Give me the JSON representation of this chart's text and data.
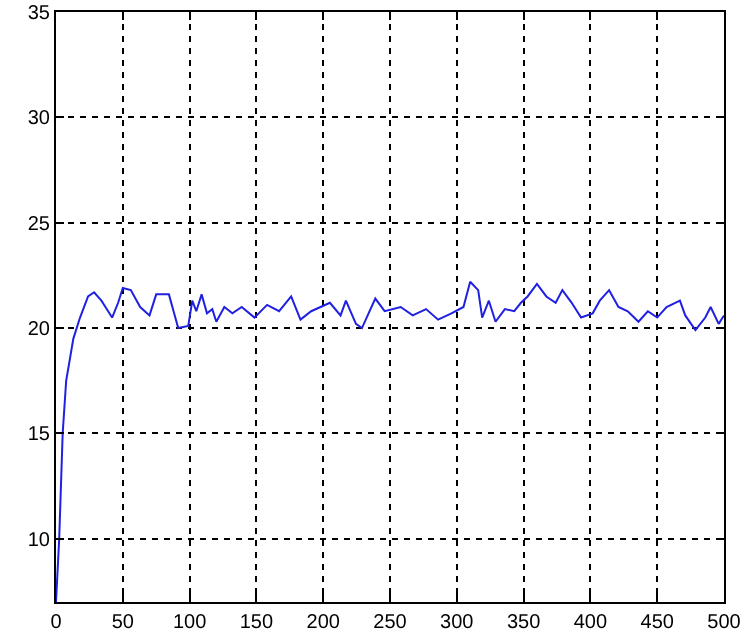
{
  "chart_data": {
    "type": "line",
    "x": [
      0,
      2.4,
      5,
      7.6,
      13,
      18,
      24,
      28.5,
      34,
      37,
      42,
      46.5,
      50,
      56,
      63,
      70,
      75,
      84.5,
      88,
      91.5,
      99,
      102,
      105,
      109,
      113,
      117,
      120,
      126,
      132,
      139,
      148.6,
      158,
      167,
      176,
      183,
      191,
      205,
      213,
      217,
      224.5,
      229,
      239,
      246,
      258,
      267,
      277,
      286,
      296,
      305,
      310,
      316,
      319,
      324,
      329,
      336,
      343,
      348,
      353,
      360,
      367,
      374,
      379,
      386,
      393,
      401.7,
      407,
      414,
      421,
      428,
      436,
      443,
      450,
      457,
      467,
      471,
      478.6,
      486,
      490,
      496,
      500
    ],
    "series": [
      {
        "color": "#2020e0",
        "values": [
          7,
          10,
          15,
          17.5,
          19.5,
          20.5,
          21.5,
          21.7,
          21.3,
          21,
          20.5,
          21.2,
          21.9,
          21.8,
          21,
          20.6,
          21.6,
          21.6,
          20.8,
          20,
          20.1,
          21.3,
          20.8,
          21.6,
          20.7,
          20.9,
          20.3,
          21,
          20.7,
          21,
          20.5,
          21.1,
          20.8,
          21.5,
          20.4,
          20.8,
          21.2,
          20.6,
          21.3,
          20.2,
          20,
          21.4,
          20.8,
          21,
          20.6,
          20.9,
          20.4,
          20.7,
          21,
          22.2,
          21.8,
          20.5,
          21.3,
          20.3,
          20.9,
          20.8,
          21.2,
          21.5,
          22.1,
          21.5,
          21.2,
          21.8,
          21.2,
          20.5,
          20.7,
          21.3,
          21.8,
          21,
          20.8,
          20.3,
          20.8,
          20.5,
          21,
          21.3,
          20.6,
          19.9,
          20.5,
          21,
          20.2,
          20.6
        ]
      }
    ],
    "xlim": [
      0,
      500
    ],
    "xticks": [
      0,
      50,
      100,
      150,
      200,
      250,
      300,
      350,
      400,
      450,
      500
    ],
    "ylim": [
      7,
      35
    ],
    "yticks": [
      10,
      15,
      20,
      25,
      30,
      35
    ],
    "grid": true,
    "line_style": "solid",
    "marker": "none"
  }
}
